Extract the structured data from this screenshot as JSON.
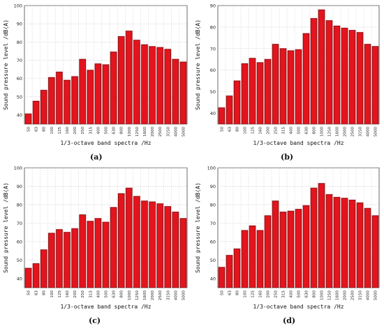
{
  "colors": {
    "bar_fill": "#e4141d",
    "bar_stroke": "#7a1010",
    "bar_edge_highlight": "#f3a6ae",
    "grid": "#c8c8c8",
    "axis": "#333333"
  },
  "chart_data": [
    {
      "panel_label": "(a)",
      "type": "bar",
      "ylabel": "Sound pressure level /dB(A)",
      "xlabel": "1/3-octave band spectra /Hz",
      "ylim": [
        35,
        100
      ],
      "yticks": [
        40,
        50,
        60,
        70,
        80,
        90,
        100
      ],
      "grid": true,
      "categories": [
        "50",
        "63",
        "80",
        "100",
        "125",
        "160",
        "200",
        "250",
        "315",
        "400",
        "500",
        "630",
        "800",
        "1000",
        "1250",
        "1600",
        "2000",
        "2500",
        "3150",
        "4000",
        "5000"
      ],
      "values": [
        40.5,
        47.5,
        53.5,
        60.5,
        63.5,
        59.0,
        61.0,
        70.5,
        64.5,
        68.0,
        67.5,
        74.5,
        83.0,
        86.0,
        81.0,
        78.5,
        77.5,
        77.0,
        76.0,
        70.5,
        69.0
      ]
    },
    {
      "panel_label": "(b)",
      "type": "bar",
      "ylabel": "Sound pressure level /dB(A)",
      "xlabel": "1/3-octave band spectra /Hz",
      "ylim": [
        35,
        90
      ],
      "yticks": [
        40,
        50,
        60,
        70,
        80,
        90
      ],
      "grid": true,
      "categories": [
        "50",
        "63",
        "80",
        "100",
        "125",
        "160",
        "200",
        "250",
        "315",
        "400",
        "500",
        "630",
        "800",
        "1000",
        "1250",
        "1600",
        "2000",
        "2500",
        "3150",
        "4000",
        "5000"
      ],
      "values": [
        42.5,
        48.0,
        55.0,
        63.0,
        65.5,
        63.5,
        65.0,
        72.0,
        70.0,
        69.0,
        69.5,
        77.0,
        84.0,
        88.0,
        83.0,
        80.5,
        79.5,
        78.5,
        77.5,
        72.0,
        71.0
      ]
    },
    {
      "panel_label": "(c)",
      "type": "bar",
      "ylabel": "Sound pressure level /dB(A)",
      "xlabel": "1/3-octave band spectra /Hz",
      "ylim": [
        35,
        100
      ],
      "yticks": [
        40,
        50,
        60,
        70,
        80,
        90,
        100
      ],
      "grid": true,
      "categories": [
        "50",
        "63",
        "80",
        "100",
        "125",
        "160",
        "200",
        "250",
        "315",
        "400",
        "500",
        "630",
        "800",
        "1000",
        "1250",
        "1600",
        "2000",
        "2500",
        "3150",
        "4000",
        "5000"
      ],
      "values": [
        45.5,
        48.0,
        55.5,
        64.5,
        66.5,
        65.0,
        67.0,
        74.5,
        71.0,
        72.5,
        70.5,
        78.5,
        86.0,
        89.0,
        84.5,
        82.0,
        81.5,
        80.5,
        79.0,
        76.0,
        72.5
      ]
    },
    {
      "panel_label": "(d)",
      "type": "bar",
      "ylabel": "Sound pressure level /dB(A)",
      "xlabel": "1/3-octave band spectra /Hz",
      "ylim": [
        35,
        100
      ],
      "yticks": [
        40,
        50,
        60,
        70,
        80,
        90,
        100
      ],
      "grid": true,
      "categories": [
        "50",
        "63",
        "80",
        "100",
        "125",
        "160",
        "200",
        "250",
        "315",
        "400",
        "500",
        "630",
        "800",
        "1000",
        "1250",
        "1600",
        "2000",
        "2500",
        "3150",
        "4000",
        "5000"
      ],
      "values": [
        46.0,
        52.5,
        56.0,
        66.0,
        68.5,
        66.0,
        74.0,
        82.0,
        76.0,
        76.5,
        77.5,
        79.5,
        89.0,
        91.5,
        85.5,
        84.0,
        83.5,
        82.5,
        81.0,
        78.0,
        74.0
      ]
    }
  ]
}
